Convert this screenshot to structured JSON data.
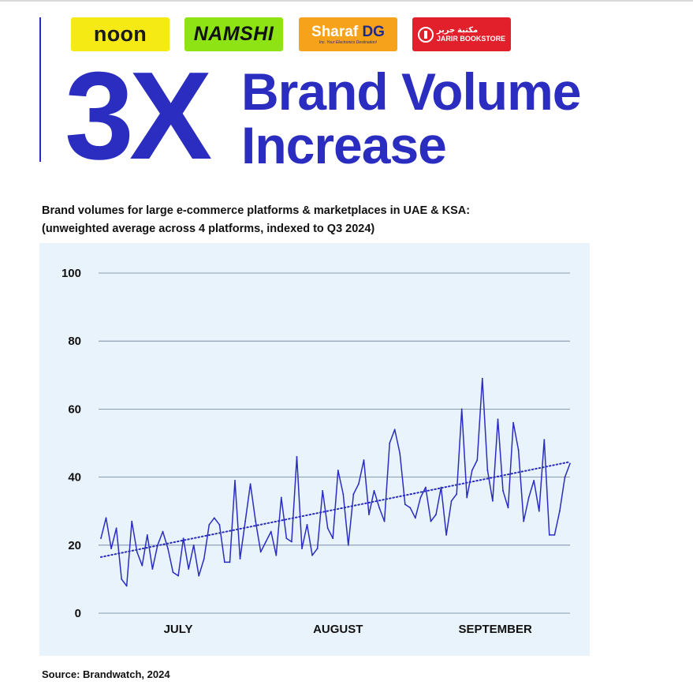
{
  "logos": {
    "noon": "noon",
    "namshi": "NAMSHI",
    "sharaf_name": "Sharaf",
    "sharaf_suffix": "DG",
    "sharaf_tagline": "Inc. Your Electronics Destination!",
    "jarir": "JARIR BOOKSTORE",
    "jarir_arabic": "مكتبة جرير"
  },
  "headline": {
    "multiplier": "3X",
    "line1": "Brand Volume",
    "line2": "Increase"
  },
  "subtitle": {
    "line1": "Brand volumes for large e-commerce platforms & marketplaces in UAE & KSA:",
    "line2": "(unweighted average across 4 platforms, indexed to Q3 2024)"
  },
  "source": "Source: Brandwatch, 2024",
  "colors": {
    "brand_blue": "#2a2dbf",
    "chart_bg": "#e8f3fc",
    "noon_yellow": "#f5ea14",
    "namshi_green": "#8ee314",
    "sharaf_orange": "#f7a21b",
    "jarir_red": "#e1202c"
  },
  "chart_data": {
    "type": "line",
    "title": "",
    "xlabel": "",
    "ylabel": "",
    "ylim": [
      0,
      100
    ],
    "yticks": [
      0,
      20,
      40,
      60,
      80,
      100
    ],
    "grid": true,
    "month_labels": [
      "JULY",
      "AUGUST",
      "SEPTEMBER"
    ],
    "x_start": "2024-07-01",
    "series": [
      {
        "name": "",
        "values": [
          22,
          28,
          19,
          25,
          10,
          8,
          27,
          18,
          14,
          23,
          13,
          20,
          24,
          19,
          12,
          11,
          22,
          13,
          20,
          11,
          16,
          26,
          28,
          26,
          15,
          15,
          39,
          16,
          27,
          38,
          27,
          18,
          21,
          24,
          17,
          34,
          22,
          21,
          46,
          19,
          26,
          17,
          19,
          36,
          25,
          22,
          42,
          35,
          20,
          35,
          38,
          45,
          29,
          36,
          31,
          27,
          50,
          54,
          47,
          32,
          31,
          28,
          34,
          37,
          27,
          29,
          37,
          23,
          33,
          35,
          60,
          34,
          42,
          45,
          69,
          42,
          33,
          57,
          36,
          31,
          56,
          48,
          27,
          34,
          39,
          30,
          51,
          23,
          23,
          30,
          40,
          44
        ]
      },
      {
        "name": "",
        "style": "dotted",
        "values": [
          16.5,
          44.5
        ]
      }
    ]
  }
}
